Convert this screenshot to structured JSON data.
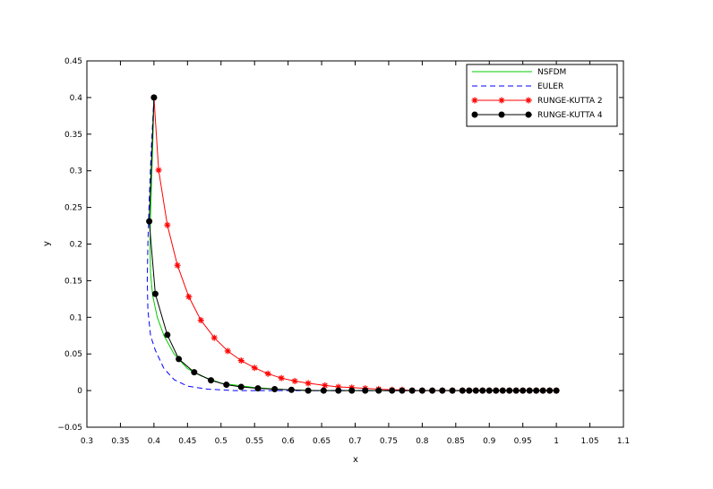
{
  "chart_data": {
    "type": "line",
    "title": "",
    "xlabel": "x",
    "ylabel": "y",
    "xlim": [
      0.3,
      1.1
    ],
    "ylim": [
      -0.05,
      0.45
    ],
    "x_ticks": [
      "0.3",
      "0.35",
      "0.4",
      "0.45",
      "0.5",
      "0.55",
      "0.6",
      "0.65",
      "0.7",
      "0.75",
      "0.8",
      "0.85",
      "0.9",
      "0.95",
      "1",
      "1.05",
      "1.1"
    ],
    "y_ticks": [
      "−0.05",
      "0",
      "0.05",
      "0.1",
      "0.15",
      "0.2",
      "0.25",
      "0.3",
      "0.35",
      "0.4",
      "0.45"
    ],
    "grid": false,
    "legend_position": "top-right",
    "series": [
      {
        "name": "NSFDM",
        "color": "#00cc00",
        "style": "solid",
        "marker": "none",
        "points": [
          [
            0.4,
            0.4
          ],
          [
            0.399,
            0.36
          ],
          [
            0.397,
            0.3
          ],
          [
            0.395,
            0.24
          ],
          [
            0.394,
            0.2
          ],
          [
            0.395,
            0.16
          ],
          [
            0.398,
            0.13
          ],
          [
            0.405,
            0.1
          ],
          [
            0.415,
            0.075
          ],
          [
            0.43,
            0.05
          ],
          [
            0.45,
            0.03
          ],
          [
            0.47,
            0.02
          ],
          [
            0.5,
            0.01
          ],
          [
            0.55,
            0.004
          ],
          [
            0.6,
            0.001
          ],
          [
            0.65,
            0.0
          ],
          [
            0.7,
            0.0
          ],
          [
            0.8,
            0.0
          ],
          [
            0.9,
            0.0
          ],
          [
            1.0,
            0.0
          ]
        ]
      },
      {
        "name": "EULER",
        "color": "#0000ff",
        "style": "dashed",
        "marker": "none",
        "points": [
          [
            0.4,
            0.4
          ],
          [
            0.396,
            0.33
          ],
          [
            0.393,
            0.26
          ],
          [
            0.391,
            0.2
          ],
          [
            0.39,
            0.15
          ],
          [
            0.391,
            0.11
          ],
          [
            0.395,
            0.075
          ],
          [
            0.402,
            0.055
          ],
          [
            0.415,
            0.03
          ],
          [
            0.43,
            0.015
          ],
          [
            0.45,
            0.006
          ],
          [
            0.48,
            0.002
          ],
          [
            0.52,
            0.0
          ],
          [
            0.6,
            0.0
          ],
          [
            0.7,
            0.0
          ],
          [
            0.8,
            0.0
          ],
          [
            0.9,
            0.0
          ],
          [
            1.0,
            0.0
          ]
        ]
      },
      {
        "name": "RUNGE-KUTTA 2",
        "color": "#ff0000",
        "style": "solid",
        "marker": "star",
        "points": [
          [
            0.4,
            0.4
          ],
          [
            0.407,
            0.301
          ],
          [
            0.42,
            0.226
          ],
          [
            0.435,
            0.171
          ],
          [
            0.452,
            0.128
          ],
          [
            0.47,
            0.096
          ],
          [
            0.49,
            0.072
          ],
          [
            0.51,
            0.054
          ],
          [
            0.53,
            0.041
          ],
          [
            0.55,
            0.031
          ],
          [
            0.57,
            0.023
          ],
          [
            0.59,
            0.017
          ],
          [
            0.61,
            0.013
          ],
          [
            0.63,
            0.01
          ],
          [
            0.655,
            0.007
          ],
          [
            0.675,
            0.005
          ],
          [
            0.695,
            0.004
          ],
          [
            0.715,
            0.003
          ],
          [
            0.735,
            0.002
          ],
          [
            0.755,
            0.001
          ],
          [
            0.77,
            0.001
          ],
          [
            0.785,
            0.0
          ],
          [
            0.8,
            0.0
          ],
          [
            0.815,
            0.0
          ],
          [
            0.83,
            0.0
          ],
          [
            0.845,
            0.0
          ],
          [
            0.86,
            0.0
          ],
          [
            0.87,
            0.0
          ],
          [
            0.88,
            0.0
          ],
          [
            0.89,
            0.0
          ],
          [
            0.9,
            0.0
          ],
          [
            0.91,
            0.0
          ],
          [
            0.92,
            0.0
          ],
          [
            0.93,
            0.0
          ],
          [
            0.94,
            0.0
          ],
          [
            0.95,
            0.0
          ],
          [
            0.96,
            0.0
          ],
          [
            0.97,
            0.0
          ],
          [
            0.98,
            0.0
          ],
          [
            0.99,
            0.0
          ],
          [
            1.0,
            0.0
          ]
        ]
      },
      {
        "name": "RUNGE-KUTTA 4",
        "color": "#000000",
        "style": "solid",
        "marker": "circle",
        "points": [
          [
            0.4,
            0.4
          ],
          [
            0.393,
            0.231
          ],
          [
            0.402,
            0.132
          ],
          [
            0.42,
            0.076
          ],
          [
            0.437,
            0.043
          ],
          [
            0.46,
            0.025
          ],
          [
            0.485,
            0.014
          ],
          [
            0.508,
            0.008
          ],
          [
            0.53,
            0.005
          ],
          [
            0.555,
            0.003
          ],
          [
            0.58,
            0.002
          ],
          [
            0.605,
            0.001
          ],
          [
            0.63,
            0.0
          ],
          [
            0.653,
            0.0
          ],
          [
            0.675,
            0.0
          ],
          [
            0.695,
            0.0
          ],
          [
            0.715,
            0.0
          ],
          [
            0.735,
            0.0
          ],
          [
            0.755,
            0.0
          ],
          [
            0.77,
            0.0
          ],
          [
            0.785,
            0.0
          ],
          [
            0.8,
            0.0
          ],
          [
            0.815,
            0.0
          ],
          [
            0.83,
            0.0
          ],
          [
            0.845,
            0.0
          ],
          [
            0.86,
            0.0
          ],
          [
            0.87,
            0.0
          ],
          [
            0.88,
            0.0
          ],
          [
            0.89,
            0.0
          ],
          [
            0.9,
            0.0
          ],
          [
            0.91,
            0.0
          ],
          [
            0.92,
            0.0
          ],
          [
            0.93,
            0.0
          ],
          [
            0.94,
            0.0
          ],
          [
            0.95,
            0.0
          ],
          [
            0.96,
            0.0
          ],
          [
            0.97,
            0.0
          ],
          [
            0.98,
            0.0
          ],
          [
            0.99,
            0.0
          ],
          [
            1.0,
            0.0
          ]
        ]
      }
    ]
  }
}
